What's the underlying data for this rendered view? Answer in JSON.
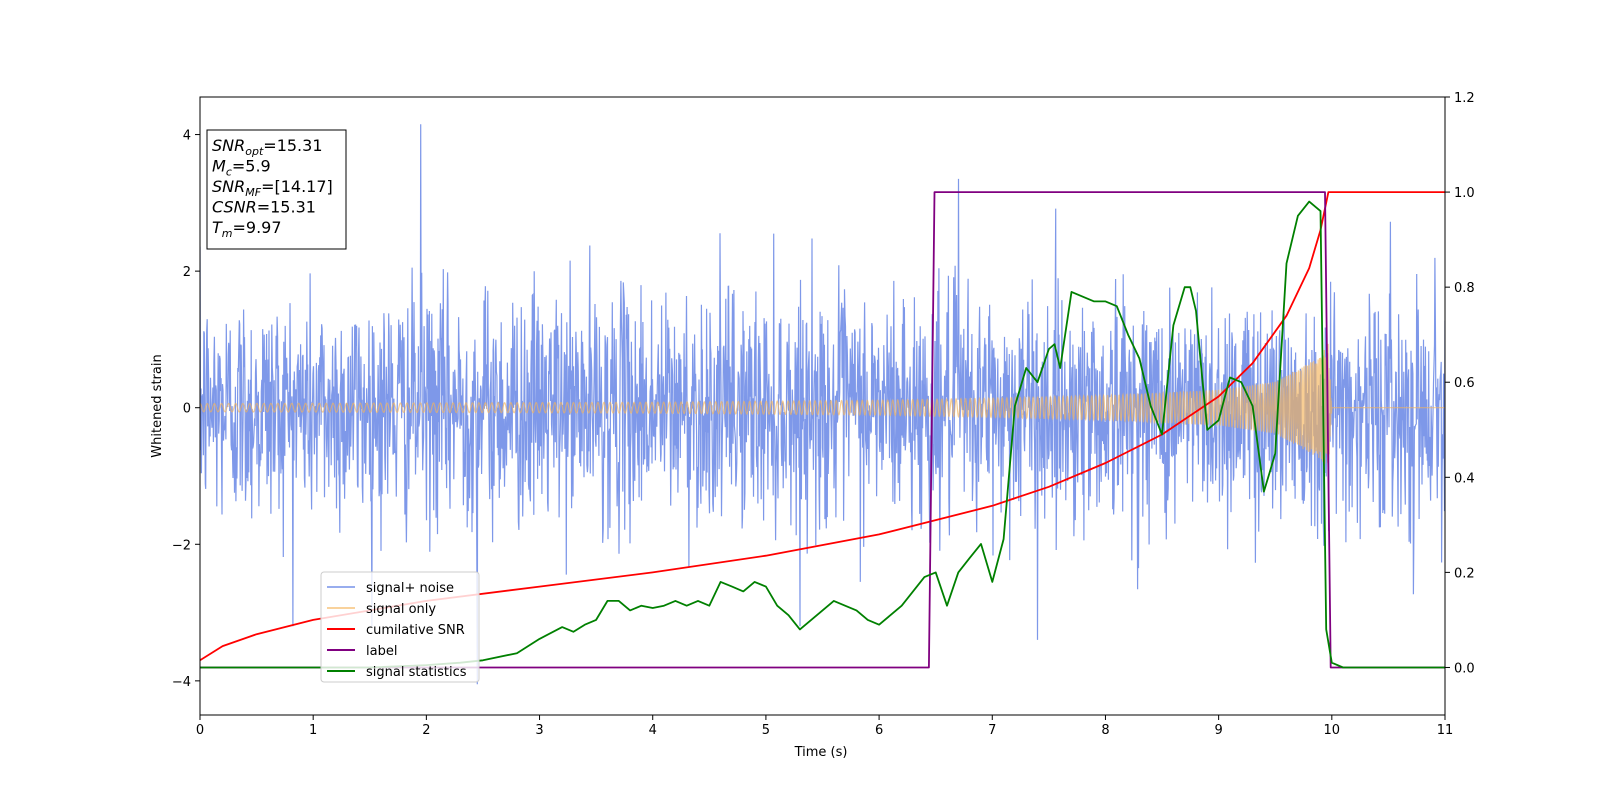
{
  "chart_data": {
    "type": "line",
    "xlabel": "Time (s)",
    "ylabel": "Whitened strain",
    "xlim": [
      0,
      11
    ],
    "ylim_left": [
      -4.5,
      4.55
    ],
    "ylim_right": [
      -0.1,
      1.2
    ],
    "x_ticks": [
      "0",
      "1",
      "2",
      "3",
      "4",
      "5",
      "6",
      "7",
      "8",
      "9",
      "10",
      "11"
    ],
    "y_left_ticks": [
      {
        "value": 4,
        "label": "4"
      },
      {
        "value": 2,
        "label": "2"
      },
      {
        "value": 0,
        "label": "0"
      },
      {
        "value": -2,
        "label": "−2"
      },
      {
        "value": -4,
        "label": "−4"
      }
    ],
    "y_right_ticks": [
      "0.0",
      "0.2",
      "0.4",
      "0.6",
      "0.8",
      "1.0",
      "1.2"
    ],
    "grid": false,
    "legend_placement": "lower-left",
    "annotation": [
      {
        "main": "SNR",
        "sub": "opt",
        "rest": "=15.31"
      },
      {
        "main": "M",
        "sub": "c",
        "rest": "=5.9"
      },
      {
        "main": "SNR",
        "sub": "MF",
        "rest": "=[14.17]"
      },
      {
        "main": "CSNR",
        "sub": "",
        "rest": "=15.31"
      },
      {
        "main": "T",
        "sub": "m",
        "rest": "=9.97"
      }
    ],
    "series": [
      {
        "name": "signal+ noise",
        "axis": "left",
        "color": "#7792e8",
        "description_points": [
          [
            0,
            0
          ],
          [
            1.95,
            4.15
          ],
          [
            2.45,
            -4.05
          ],
          [
            6.7,
            3.35
          ],
          [
            7.4,
            -3.4
          ]
        ],
        "noise_std": 0.85,
        "x_range": [
          0,
          11
        ]
      },
      {
        "name": "signal only",
        "axis": "left",
        "color": "#f5b35a",
        "envelope": [
          [
            0,
            0.06
          ],
          [
            2,
            0.07
          ],
          [
            4,
            0.08
          ],
          [
            6,
            0.11
          ],
          [
            7,
            0.14
          ],
          [
            8,
            0.18
          ],
          [
            9,
            0.26
          ],
          [
            9.5,
            0.38
          ],
          [
            9.9,
            0.75
          ],
          [
            9.97,
            0.95
          ],
          [
            10.0,
            0.0
          ],
          [
            11,
            0.0
          ]
        ]
      },
      {
        "name": "cumilative SNR",
        "axis": "right",
        "color": "#ff0000",
        "x": [
          0,
          0.2,
          0.5,
          1,
          2,
          3,
          4,
          5,
          6,
          6.5,
          7,
          7.5,
          8,
          8.5,
          9,
          9.3,
          9.6,
          9.8,
          9.9,
          9.97,
          10,
          11
        ],
        "y": [
          0.015,
          0.045,
          0.07,
          0.1,
          0.14,
          0.17,
          0.2,
          0.235,
          0.28,
          0.31,
          0.34,
          0.38,
          0.43,
          0.49,
          0.57,
          0.64,
          0.74,
          0.84,
          0.92,
          1.0,
          1.0,
          1.0
        ]
      },
      {
        "name": "label",
        "axis": "right",
        "color": "#800080",
        "x": [
          0,
          6.44,
          6.49,
          9.94,
          9.99,
          11
        ],
        "y": [
          0,
          0,
          1,
          1,
          0,
          0
        ]
      },
      {
        "name": "signal statistics",
        "axis": "right",
        "color": "#008000",
        "x": [
          0,
          1.5,
          2.0,
          2.3,
          2.5,
          2.8,
          3.0,
          3.2,
          3.3,
          3.4,
          3.5,
          3.6,
          3.7,
          3.8,
          3.9,
          4.0,
          4.1,
          4.2,
          4.3,
          4.4,
          4.5,
          4.6,
          4.7,
          4.8,
          4.9,
          5.0,
          5.1,
          5.2,
          5.3,
          5.4,
          5.5,
          5.6,
          5.7,
          5.8,
          5.9,
          6.0,
          6.1,
          6.2,
          6.3,
          6.4,
          6.5,
          6.6,
          6.7,
          6.8,
          6.9,
          7.0,
          7.1,
          7.2,
          7.3,
          7.4,
          7.5,
          7.55,
          7.6,
          7.7,
          7.8,
          7.9,
          8.0,
          8.1,
          8.2,
          8.3,
          8.4,
          8.45,
          8.5,
          8.6,
          8.7,
          8.75,
          8.8,
          8.85,
          8.9,
          9.0,
          9.1,
          9.2,
          9.3,
          9.4,
          9.45,
          9.5,
          9.6,
          9.7,
          9.8,
          9.9,
          9.95,
          10.0,
          10.1,
          11
        ],
        "y": [
          0.0,
          0.0,
          0.005,
          0.01,
          0.015,
          0.03,
          0.06,
          0.085,
          0.075,
          0.09,
          0.1,
          0.14,
          0.14,
          0.12,
          0.13,
          0.125,
          0.13,
          0.14,
          0.13,
          0.14,
          0.13,
          0.18,
          0.17,
          0.16,
          0.18,
          0.17,
          0.13,
          0.11,
          0.08,
          0.1,
          0.12,
          0.14,
          0.13,
          0.12,
          0.1,
          0.09,
          0.11,
          0.13,
          0.16,
          0.19,
          0.2,
          0.13,
          0.2,
          0.23,
          0.26,
          0.18,
          0.27,
          0.55,
          0.63,
          0.6,
          0.67,
          0.68,
          0.63,
          0.79,
          0.78,
          0.77,
          0.77,
          0.76,
          0.7,
          0.65,
          0.55,
          0.52,
          0.49,
          0.72,
          0.8,
          0.8,
          0.75,
          0.62,
          0.5,
          0.52,
          0.61,
          0.6,
          0.55,
          0.37,
          0.41,
          0.45,
          0.85,
          0.95,
          0.98,
          0.96,
          0.08,
          0.01,
          0.0,
          0.0
        ]
      }
    ]
  }
}
